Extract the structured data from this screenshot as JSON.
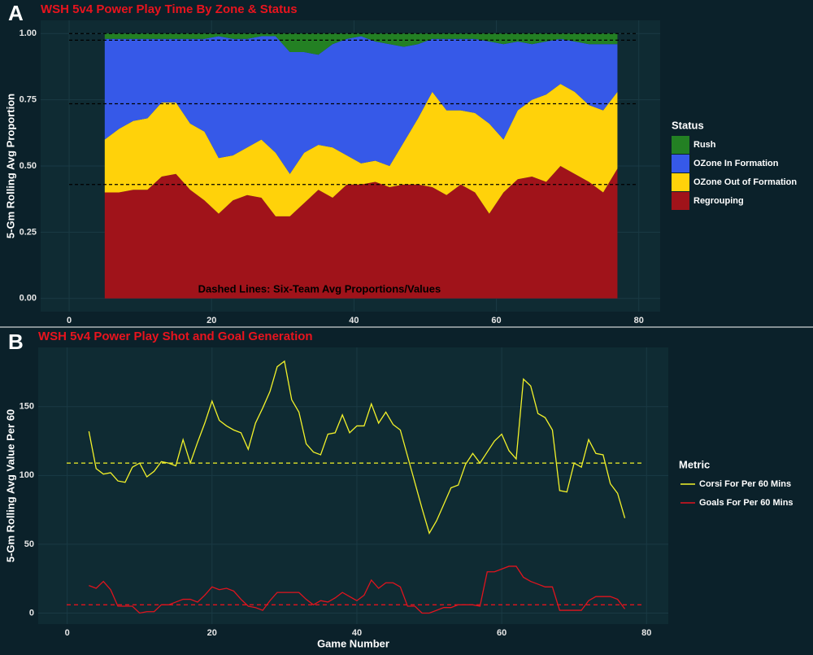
{
  "chart_data": [
    {
      "type": "stacked_area",
      "panel": "A",
      "title": "WSH  5v4 Power Play Time By Zone & Status",
      "y_label": "5-Gm Rolling Avg Proportion",
      "annotation": "Dashed Lines: Six-Team Avg Proportions/Values",
      "legend_title": "Status",
      "x": [
        5,
        7,
        9,
        11,
        13,
        15,
        17,
        19,
        21,
        23,
        25,
        27,
        29,
        31,
        33,
        35,
        37,
        39,
        41,
        43,
        45,
        47,
        49,
        51,
        53,
        55,
        57,
        59,
        61,
        63,
        65,
        67,
        69,
        71,
        73,
        75,
        77
      ],
      "series": [
        {
          "name": "Rush",
          "color": "#238023",
          "values": [
            0.02,
            0.02,
            0.02,
            0.02,
            0.02,
            0.02,
            0.02,
            0.02,
            0.01,
            0.02,
            0.02,
            0.01,
            0.01,
            0.07,
            0.07,
            0.08,
            0.04,
            0.02,
            0.01,
            0.03,
            0.04,
            0.05,
            0.04,
            0.02,
            0.02,
            0.02,
            0.02,
            0.03,
            0.04,
            0.03,
            0.04,
            0.03,
            0.02,
            0.03,
            0.04,
            0.04,
            0.04
          ]
        },
        {
          "name": "OZone In Formation",
          "color": "#3659e8",
          "values": [
            0.38,
            0.34,
            0.31,
            0.3,
            0.24,
            0.24,
            0.32,
            0.35,
            0.46,
            0.44,
            0.41,
            0.39,
            0.44,
            0.46,
            0.38,
            0.34,
            0.39,
            0.44,
            0.48,
            0.45,
            0.46,
            0.36,
            0.28,
            0.2,
            0.27,
            0.27,
            0.28,
            0.31,
            0.36,
            0.26,
            0.21,
            0.2,
            0.17,
            0.19,
            0.23,
            0.25,
            0.18
          ]
        },
        {
          "name": "OZone Out of Formation",
          "color": "#ffd20a",
          "values": [
            0.2,
            0.24,
            0.26,
            0.27,
            0.28,
            0.27,
            0.25,
            0.26,
            0.21,
            0.17,
            0.18,
            0.22,
            0.24,
            0.16,
            0.19,
            0.17,
            0.19,
            0.11,
            0.08,
            0.08,
            0.08,
            0.16,
            0.25,
            0.36,
            0.32,
            0.28,
            0.3,
            0.34,
            0.2,
            0.26,
            0.29,
            0.33,
            0.31,
            0.31,
            0.29,
            0.31,
            0.29
          ]
        },
        {
          "name": "Regrouping",
          "color": "#a0131a",
          "values": [
            0.4,
            0.4,
            0.41,
            0.41,
            0.46,
            0.47,
            0.41,
            0.37,
            0.32,
            0.37,
            0.39,
            0.38,
            0.31,
            0.31,
            0.36,
            0.41,
            0.38,
            0.43,
            0.43,
            0.44,
            0.42,
            0.43,
            0.43,
            0.42,
            0.39,
            0.43,
            0.4,
            0.32,
            0.4,
            0.45,
            0.46,
            0.44,
            0.5,
            0.47,
            0.44,
            0.4,
            0.49
          ]
        }
      ],
      "reference_lines": [
        0.43,
        0.735,
        0.975,
        1.0
      ],
      "xlim": [
        -4,
        83
      ],
      "ylim": [
        -0.05,
        1.05
      ],
      "xticks": [
        0,
        20,
        40,
        60,
        80
      ],
      "yticks": [
        {
          "value": 0,
          "label": "0.00"
        },
        0.25,
        {
          "value": 0.5,
          "label": "0.50"
        },
        0.75,
        {
          "value": 1,
          "label": "1.00"
        }
      ],
      "grid": true
    },
    {
      "type": "line",
      "panel": "B",
      "title": "WSH  5v4 Power Play Shot and Goal Generation",
      "y_label": "5-Gm Rolling Avg Value Per 60",
      "x_label": "Game Number",
      "legend_title": "Metric",
      "x": [
        3,
        4,
        5,
        6,
        7,
        8,
        9,
        10,
        11,
        12,
        13,
        14,
        15,
        16,
        17,
        18,
        19,
        20,
        21,
        22,
        23,
        24,
        25,
        26,
        27,
        28,
        29,
        30,
        31,
        32,
        33,
        34,
        35,
        36,
        37,
        38,
        39,
        40,
        41,
        42,
        43,
        44,
        45,
        46,
        47,
        48,
        49,
        50,
        51,
        52,
        53,
        54,
        55,
        56,
        57,
        58,
        59,
        60,
        61,
        62,
        63,
        64,
        65,
        66,
        67,
        68,
        69,
        70,
        71,
        72,
        73,
        74,
        75,
        76,
        77
      ],
      "series": [
        {
          "name": "Corsi For Per 60 Mins",
          "color": "#f2f22a",
          "average": 109,
          "values": [
            132,
            105,
            101,
            102,
            96,
            95,
            106,
            109,
            99,
            103,
            110,
            109,
            107,
            126,
            109,
            124,
            138,
            154,
            140,
            136,
            133,
            131,
            119,
            138,
            149,
            161,
            179,
            183,
            155,
            146,
            123,
            117,
            115,
            130,
            131,
            144,
            131,
            136,
            136,
            152,
            138,
            146,
            137,
            133,
            114,
            95,
            76,
            58,
            67,
            79,
            91,
            93,
            108,
            116,
            109,
            117,
            125,
            130,
            118,
            112,
            170,
            165,
            145,
            142,
            133,
            89,
            88,
            109,
            106,
            126,
            116,
            115,
            94,
            87,
            69
          ]
        },
        {
          "name": "Goals For Per 60 Mins",
          "color": "#e0141e",
          "average": 6,
          "values": [
            20,
            18,
            23,
            17,
            5,
            5,
            5,
            0,
            1,
            1,
            6,
            6,
            8,
            10,
            10,
            8,
            13,
            19,
            17,
            18,
            16,
            10,
            5,
            4,
            2,
            9,
            15,
            15,
            15,
            15,
            10,
            6,
            9,
            8,
            11,
            15,
            12,
            9,
            13,
            24,
            18,
            22,
            22,
            19,
            5,
            5,
            0,
            0,
            2,
            4,
            4,
            6,
            6,
            6,
            5,
            30,
            30,
            32,
            34,
            34,
            26,
            23,
            21,
            19,
            19,
            2,
            2,
            2,
            2,
            9,
            12,
            12,
            12,
            10,
            3
          ]
        }
      ],
      "xlim": [
        -4,
        83
      ],
      "ylim": [
        -8,
        193
      ],
      "xticks": [
        0,
        20,
        40,
        60,
        80
      ],
      "yticks": [
        0,
        50,
        100,
        150
      ],
      "grid": true
    }
  ]
}
